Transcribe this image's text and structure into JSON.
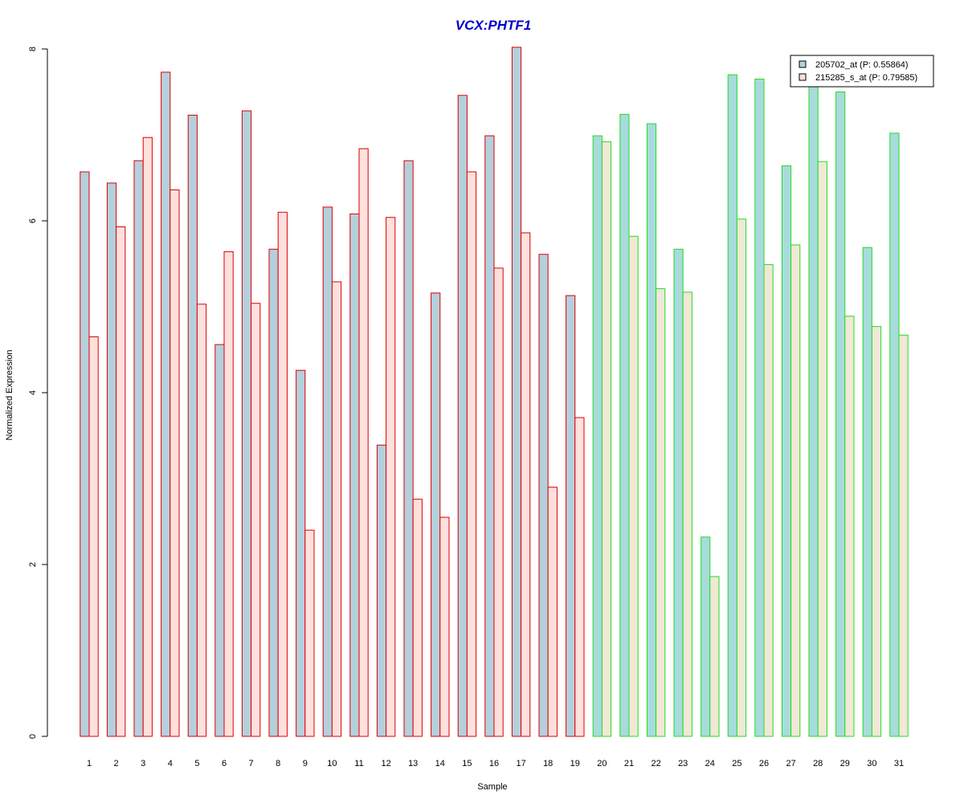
{
  "chart_data": {
    "type": "bar",
    "title": "VCX:PHTF1",
    "xlabel": "Sample",
    "ylabel": "Normalized Expression",
    "ylim": [
      0,
      8
    ],
    "yticks": [
      "0",
      "2",
      "4",
      "6",
      "8"
    ],
    "grid": false,
    "legend_position": "top-right",
    "categories": [
      "1",
      "2",
      "3",
      "4",
      "5",
      "6",
      "7",
      "8",
      "9",
      "10",
      "11",
      "12",
      "13",
      "14",
      "15",
      "16",
      "17",
      "18",
      "19",
      "20",
      "21",
      "22",
      "23",
      "24",
      "25",
      "26",
      "27",
      "28",
      "29",
      "30",
      "31"
    ],
    "groups": [
      {
        "count": 19,
        "border_color": "#dd0000"
      },
      {
        "count": 12,
        "border_color": "#22dd22"
      }
    ],
    "series": [
      {
        "name": "205702_at (P: 0.55864)",
        "fill_group1": "#b4d0dc",
        "fill_group2": "#a8dcdc",
        "values": [
          6.57,
          6.44,
          6.7,
          7.73,
          7.23,
          4.56,
          7.28,
          5.67,
          4.26,
          6.16,
          6.08,
          3.39,
          6.7,
          5.16,
          7.46,
          6.99,
          8.02,
          5.61,
          5.13,
          6.99,
          7.24,
          7.13,
          5.67,
          2.32,
          7.7,
          7.65,
          6.64,
          7.58,
          7.5,
          5.69,
          7.02
        ]
      },
      {
        "name": "215285_s_at (P: 0.79585)",
        "fill_group1": "#ffe0dc",
        "fill_group2": "#f2e8d8",
        "values": [
          4.65,
          5.93,
          6.97,
          6.36,
          5.03,
          5.64,
          5.04,
          6.1,
          2.4,
          5.29,
          6.84,
          6.04,
          2.76,
          2.55,
          6.57,
          5.45,
          5.86,
          2.9,
          3.71,
          6.92,
          5.82,
          5.21,
          5.17,
          1.86,
          6.02,
          5.49,
          5.72,
          6.69,
          4.89,
          4.77,
          4.67
        ]
      }
    ]
  }
}
